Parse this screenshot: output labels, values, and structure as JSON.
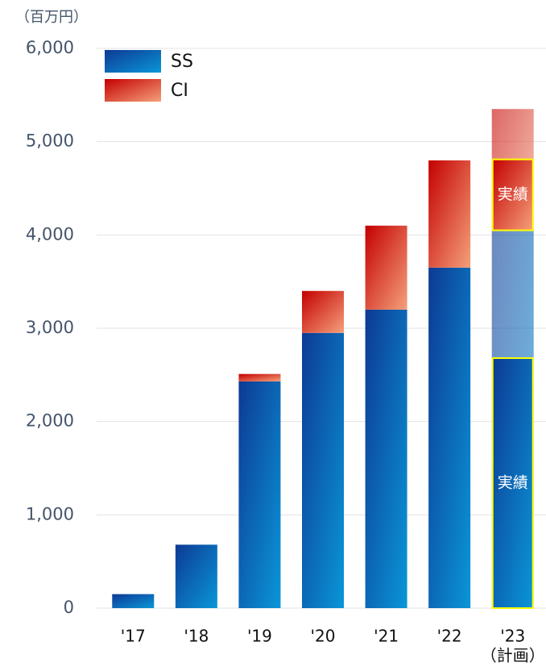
{
  "chart_data": {
    "type": "stacked_bar",
    "y_label": "（百万円）",
    "categories": [
      "'17",
      "'18",
      "'19",
      "'20",
      "'21",
      "'22",
      "'23"
    ],
    "plan_label": "（計画）",
    "series": [
      {
        "name": "SS",
        "color": "#0d3a94",
        "color_end": "#0a96d8",
        "values": [
          150,
          680,
          2430,
          2950,
          3200,
          3650,
          4050
        ]
      },
      {
        "name": "CI",
        "color": "#c40000",
        "color_end": "#f4a07a",
        "values": [
          0,
          0,
          80,
          450,
          900,
          1150,
          1300
        ]
      }
    ],
    "actual": [
      {
        "label": "実績",
        "value": 2680
      },
      {
        "label": "実績",
        "value": 760
      }
    ],
    "ylim": [
      0,
      6000
    ],
    "yticks": [
      0,
      {
        "value": 1000,
        "label": "1,000"
      },
      {
        "value": 2000,
        "label": "2,000"
      },
      {
        "value": 3000,
        "label": "3,000"
      },
      {
        "value": 4000,
        "label": "4,000"
      },
      {
        "value": 5000,
        "label": "5,000"
      },
      {
        "value": 6000,
        "label": "6,000"
      }
    ],
    "grid": true,
    "legend": "top-left"
  }
}
